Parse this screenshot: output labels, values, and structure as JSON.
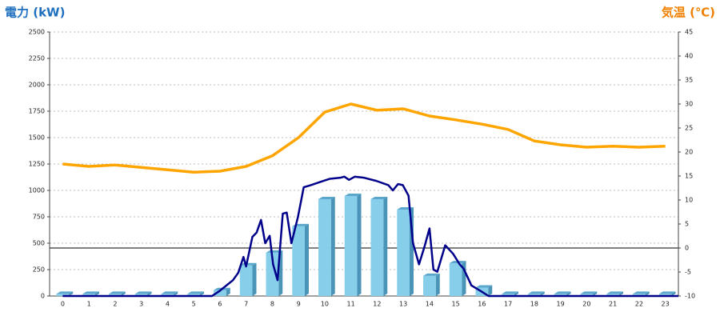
{
  "chart_data": {
    "type": "bar",
    "y_label": "電力 (kW)",
    "y2_label": "気温 (℃)",
    "categories": [
      "0",
      "1",
      "2",
      "3",
      "4",
      "5",
      "6",
      "7",
      "8",
      "9",
      "10",
      "11",
      "12",
      "13",
      "14",
      "15",
      "16",
      "17",
      "18",
      "19",
      "20",
      "21",
      "22",
      "23"
    ],
    "ylim": [
      0,
      2500
    ],
    "yticks": [
      0,
      250,
      500,
      750,
      1000,
      1250,
      1500,
      1750,
      2000,
      2250,
      2500
    ],
    "y2lim": [
      -10,
      45
    ],
    "y2ticks": [
      -10,
      -5,
      0,
      5,
      10,
      15,
      20,
      25,
      30,
      35,
      40,
      45
    ],
    "grid": true,
    "series": [
      {
        "type": "bar",
        "color": "#87ceeb",
        "values": [
          20,
          20,
          20,
          20,
          20,
          20,
          55,
          290,
          410,
          660,
          917,
          947,
          917,
          818,
          190,
          310,
          80,
          20,
          20,
          20,
          20,
          20,
          20,
          20
        ]
      },
      {
        "type": "line",
        "color": "#00008b",
        "x": [
          0,
          5.7,
          6.0,
          6.5,
          6.7,
          6.9,
          7.0,
          7.24,
          7.4,
          7.57,
          7.73,
          7.9,
          8.03,
          8.2,
          8.4,
          8.55,
          8.73,
          8.98,
          9.2,
          9.47,
          9.83,
          10.2,
          10.6,
          10.75,
          10.93,
          11.15,
          11.5,
          11.97,
          12.43,
          12.6,
          12.8,
          12.98,
          13.2,
          13.37,
          13.6,
          13.8,
          14.0,
          14.15,
          14.3,
          14.6,
          14.9,
          15.15,
          15.3,
          15.6,
          16.0,
          16.25,
          23.5
        ],
        "values": [
          0,
          0,
          50,
          150,
          220,
          370,
          280,
          560,
          600,
          720,
          500,
          570,
          300,
          150,
          780,
          790,
          500,
          750,
          1030,
          1050,
          1080,
          1110,
          1120,
          1130,
          1100,
          1130,
          1120,
          1090,
          1050,
          1000,
          1060,
          1050,
          950,
          500,
          300,
          460,
          640,
          250,
          230,
          480,
          400,
          300,
          260,
          100,
          40,
          0,
          0
        ]
      },
      {
        "type": "line",
        "axis": "y2",
        "color": "#ffa500",
        "values": [
          17.5,
          17,
          17.3,
          16.8,
          16.3,
          15.8,
          16,
          17,
          19.2,
          23,
          28.3,
          30,
          28.7,
          29,
          27.5,
          26.7,
          25.8,
          24.7,
          22.3,
          21.5,
          21,
          21.2,
          21,
          21.2
        ]
      }
    ]
  }
}
